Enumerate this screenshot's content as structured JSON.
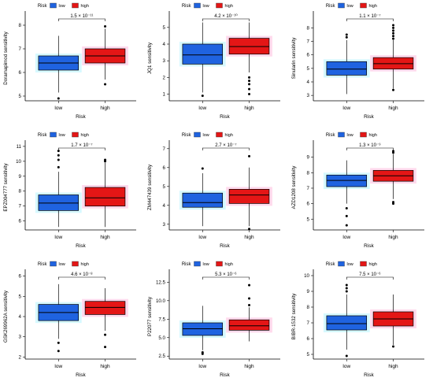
{
  "legend": {
    "title": "Risk",
    "groups": [
      "low",
      "high"
    ]
  },
  "colors": {
    "low": "#1f63e0",
    "high": "#e41616",
    "axis": "#000000",
    "low_glow": "#aef3ff",
    "high_glow": "#ffb6dc"
  },
  "chart_data": [
    {
      "type": "box",
      "title": "",
      "xlabel": "Risk",
      "ylabel": "Doramapimod sensitivity",
      "categories": [
        "low",
        "high"
      ],
      "ylim": [
        4.8,
        8.4
      ],
      "yticks": [
        5,
        6,
        7,
        8
      ],
      "pvalue": "1.5 × 10⁻¹¹",
      "series": [
        {
          "name": "low",
          "min": 5.15,
          "q1": 6.1,
          "median": 6.4,
          "q3": 6.7,
          "max": 7.55,
          "outliers": [
            4.9
          ]
        },
        {
          "name": "high",
          "min": 5.7,
          "q1": 6.4,
          "median": 6.7,
          "q3": 7.0,
          "max": 7.85,
          "outliers": [
            5.5,
            7.95
          ]
        }
      ]
    },
    {
      "type": "box",
      "title": "",
      "xlabel": "Risk",
      "ylabel": "JQ1 sensitivity",
      "categories": [
        "low",
        "high"
      ],
      "ylim": [
        0.6,
        5.7
      ],
      "yticks": [
        1,
        2,
        3,
        4,
        5
      ],
      "pvalue": "4.2 × 10⁻¹⁰",
      "series": [
        {
          "name": "low",
          "min": 1.1,
          "q1": 2.8,
          "median": 3.35,
          "q3": 4.0,
          "max": 5.3,
          "outliers": [
            0.9
          ]
        },
        {
          "name": "high",
          "min": 2.3,
          "q1": 3.4,
          "median": 3.85,
          "q3": 4.35,
          "max": 5.3,
          "outliers": [
            1.0,
            1.3,
            1.6,
            1.8,
            2.0
          ]
        }
      ]
    },
    {
      "type": "box",
      "title": "",
      "xlabel": "Risk",
      "ylabel": "Sinularin sensitivity",
      "categories": [
        "low",
        "high"
      ],
      "ylim": [
        2.6,
        8.9
      ],
      "yticks": [
        3,
        4,
        5,
        6,
        7,
        8
      ],
      "pvalue": "1.1 × 10⁻⁷",
      "series": [
        {
          "name": "low",
          "min": 3.1,
          "q1": 4.5,
          "median": 4.95,
          "q3": 5.5,
          "max": 7.1,
          "outliers": [
            7.3,
            7.5
          ]
        },
        {
          "name": "high",
          "min": 3.5,
          "q1": 4.95,
          "median": 5.35,
          "q3": 5.8,
          "max": 7.1,
          "outliers": [
            3.4,
            7.2,
            7.4,
            7.6,
            7.8,
            8.0,
            8.2
          ]
        }
      ]
    },
    {
      "type": "box",
      "title": "",
      "xlabel": "Risk",
      "ylabel": "EPZ004777 sensitivity",
      "categories": [
        "low",
        "high"
      ],
      "ylim": [
        5.4,
        11.1
      ],
      "yticks": [
        6,
        7,
        8,
        9,
        10,
        11
      ],
      "pvalue": "1.7 × 10⁻⁷",
      "series": [
        {
          "name": "low",
          "min": 5.6,
          "q1": 6.7,
          "median": 7.2,
          "q3": 7.75,
          "max": 9.3,
          "outliers": [
            9.6,
            10.1,
            10.4,
            10.7
          ]
        },
        {
          "name": "high",
          "min": 5.6,
          "q1": 7.0,
          "median": 7.55,
          "q3": 8.25,
          "max": 9.9,
          "outliers": [
            10.0,
            10.1
          ]
        }
      ]
    },
    {
      "type": "box",
      "title": "",
      "xlabel": "Risk",
      "ylabel": "ZM447439 sensitivity",
      "categories": [
        "low",
        "high"
      ],
      "ylim": [
        2.7,
        7.2
      ],
      "yticks": [
        3,
        4,
        5,
        6,
        7
      ],
      "pvalue": "2.7 × 10⁻⁷",
      "series": [
        {
          "name": "low",
          "min": 2.9,
          "q1": 3.9,
          "median": 4.15,
          "q3": 4.65,
          "max": 5.7,
          "outliers": [
            5.95
          ]
        },
        {
          "name": "high",
          "min": 2.9,
          "q1": 4.1,
          "median": 4.55,
          "q3": 4.85,
          "max": 6.0,
          "outliers": [
            2.75,
            6.6
          ]
        }
      ]
    },
    {
      "type": "box",
      "title": "",
      "xlabel": "Risk",
      "ylabel": "AZD1208 sensitivity",
      "categories": [
        "low",
        "high"
      ],
      "ylim": [
        4.3,
        9.8
      ],
      "yticks": [
        5,
        6,
        7,
        8,
        9
      ],
      "pvalue": "1.3 × 10⁻⁹",
      "series": [
        {
          "name": "low",
          "min": 6.0,
          "q1": 7.1,
          "median": 7.5,
          "q3": 7.85,
          "max": 8.8,
          "outliers": [
            4.6,
            5.2,
            5.7
          ]
        },
        {
          "name": "high",
          "min": 6.3,
          "q1": 7.45,
          "median": 7.8,
          "q3": 8.15,
          "max": 9.2,
          "outliers": [
            6.0,
            6.1,
            9.3,
            9.4
          ]
        }
      ]
    },
    {
      "type": "box",
      "title": "",
      "xlabel": "Risk",
      "ylabel": "GSK269962A sensitivity",
      "categories": [
        "low",
        "high"
      ],
      "ylim": [
        1.9,
        6.1
      ],
      "yticks": [
        2,
        3,
        4,
        5,
        6
      ],
      "pvalue": "4.6 × 10⁻⁸",
      "series": [
        {
          "name": "low",
          "min": 2.9,
          "q1": 3.8,
          "median": 4.2,
          "q3": 4.6,
          "max": 5.6,
          "outliers": [
            2.3,
            2.7
          ]
        },
        {
          "name": "high",
          "min": 3.3,
          "q1": 4.1,
          "median": 4.45,
          "q3": 4.75,
          "max": 5.4,
          "outliers": [
            2.5,
            3.1
          ]
        }
      ]
    },
    {
      "type": "box",
      "title": "",
      "xlabel": "Risk",
      "ylabel": "P22077 sensitivity",
      "categories": [
        "low",
        "high"
      ],
      "ylim": [
        2.1,
        13.6
      ],
      "yticks": [
        2.5,
        5.0,
        7.5,
        10.0,
        12.5
      ],
      "pvalue": "5.3 × 10⁻⁶",
      "series": [
        {
          "name": "low",
          "min": 3.3,
          "q1": 5.3,
          "median": 6.2,
          "q3": 7.0,
          "max": 9.3,
          "outliers": [
            2.8,
            3.0
          ]
        },
        {
          "name": "high",
          "min": 4.5,
          "q1": 6.0,
          "median": 6.6,
          "q3": 7.4,
          "max": 9.1,
          "outliers": [
            9.4,
            10.3,
            12.1
          ]
        }
      ]
    },
    {
      "type": "box",
      "title": "",
      "xlabel": "Risk",
      "ylabel": "BIBR-1532 sensitivity",
      "categories": [
        "low",
        "high"
      ],
      "ylim": [
        4.7,
        10.1
      ],
      "yticks": [
        5,
        6,
        7,
        8,
        9,
        10
      ],
      "pvalue": "7.5 × 10⁻⁶",
      "series": [
        {
          "name": "low",
          "min": 5.3,
          "q1": 6.55,
          "median": 6.95,
          "q3": 7.45,
          "max": 8.8,
          "outliers": [
            4.9,
            9.0,
            9.2,
            9.4
          ]
        },
        {
          "name": "high",
          "min": 5.6,
          "q1": 6.8,
          "median": 7.25,
          "q3": 7.7,
          "max": 8.8,
          "outliers": [
            5.5
          ]
        }
      ]
    }
  ]
}
